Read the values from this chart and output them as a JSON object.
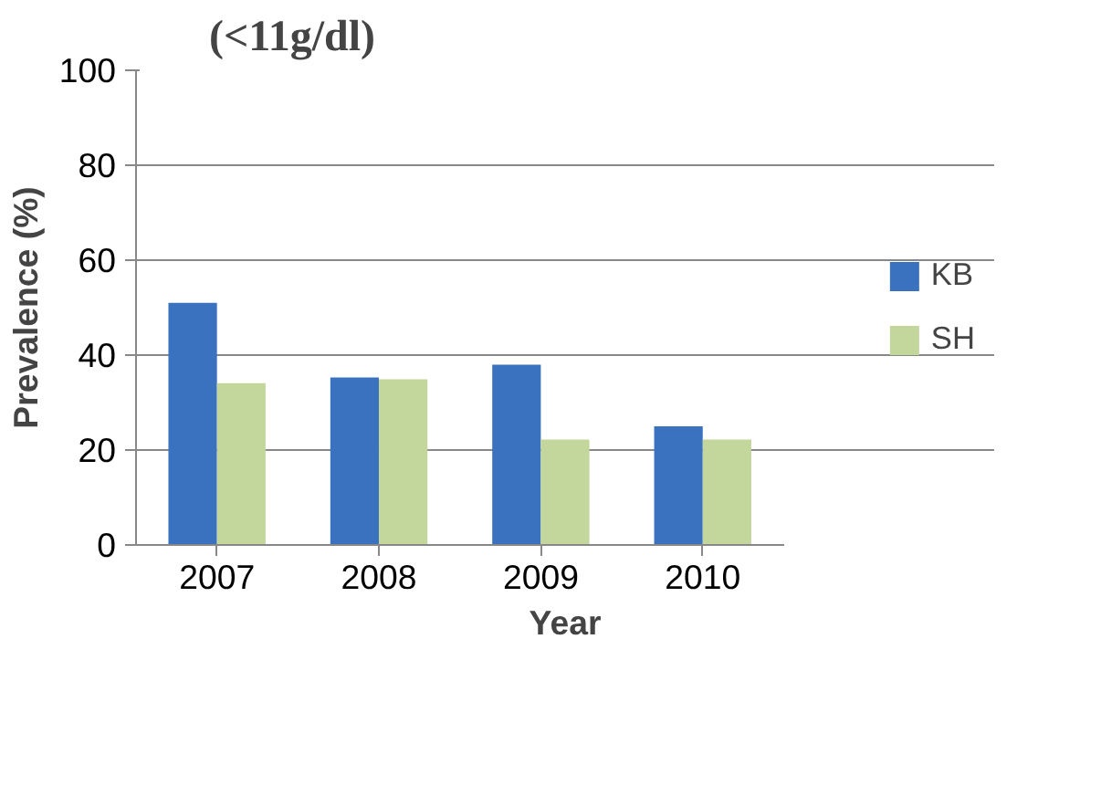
{
  "chart_data": {
    "type": "bar",
    "title": "(<11g/dl)",
    "xlabel": "Year",
    "ylabel": "Prevalence (%)",
    "categories": [
      "2007",
      "2008",
      "2009",
      "2010"
    ],
    "series": [
      {
        "name": "KB",
        "color": "#3a72c0",
        "values": [
          51,
          35.3,
          38,
          25
        ]
      },
      {
        "name": "SH",
        "color": "#c3d69b",
        "values": [
          34.1,
          34.9,
          22.2,
          22.2
        ]
      }
    ],
    "ylim": [
      0,
      100
    ],
    "yticks": [
      0,
      20,
      40,
      60,
      80,
      100
    ],
    "grid": "y",
    "legend": "right"
  }
}
